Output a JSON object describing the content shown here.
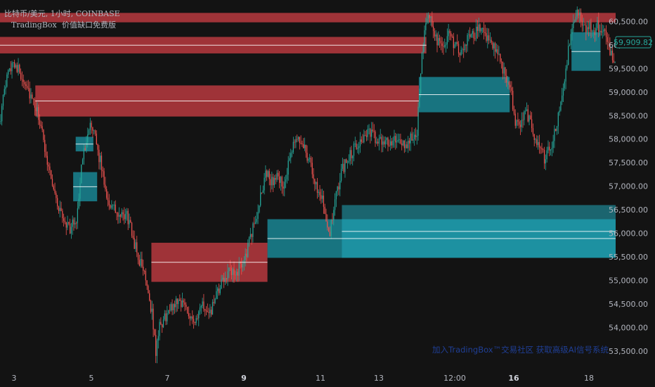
{
  "header": {
    "symbol_line": "比特币/美元, 1小时, COINBASE",
    "indicator_name": "TradingBox",
    "indicator_title": "价值缺口免费版"
  },
  "watermark": "加入TradingBox™交易社区 获取高级AI信号系统",
  "current_price": "59,909.82",
  "colors": {
    "background": "#131313",
    "bull_candle": "#26a69a",
    "bear_candle": "#ef5350",
    "bear_zone": "#b83a3f",
    "bull_zone": "#1a8a99",
    "bull_zone_light": "#22aabb",
    "mid_line": "#ffffff",
    "axis_text": "#b2b5be"
  },
  "chart_data": {
    "type": "candlestick",
    "title": "比特币/美元, 1小时, COINBASE",
    "y_axis": {
      "position": "right",
      "ticks": [
        "53,500.00",
        "54,000.00",
        "54,500.00",
        "55,000.00",
        "55,500.00",
        "56,000.00",
        "56,500.00",
        "57,000.00",
        "57,500.00",
        "58,000.00",
        "58,500.00",
        "59,000.00",
        "59,500.00",
        "60,000.00",
        "60,500.00"
      ],
      "range": [
        53350,
        60700
      ]
    },
    "x_axis": {
      "ticks": [
        {
          "label": "3",
          "bold": false
        },
        {
          "label": "5",
          "bold": false
        },
        {
          "label": "7",
          "bold": false
        },
        {
          "label": "9",
          "bold": true
        },
        {
          "label": "11",
          "bold": false
        },
        {
          "label": "13",
          "bold": false
        },
        {
          "label": "12:00",
          "bold": false
        },
        {
          "label": "16",
          "bold": true
        },
        {
          "label": "18",
          "bold": false
        }
      ]
    },
    "close_path": [
      [
        0,
        58500
      ],
      [
        5,
        59300
      ],
      [
        10,
        59700
      ],
      [
        15,
        59400
      ],
      [
        20,
        59200
      ],
      [
        25,
        58800
      ],
      [
        30,
        58500
      ],
      [
        35,
        57800
      ],
      [
        40,
        57200
      ],
      [
        45,
        56600
      ],
      [
        50,
        56300
      ],
      [
        55,
        56100
      ],
      [
        60,
        56300
      ],
      [
        65,
        57600
      ],
      [
        70,
        58300
      ],
      [
        75,
        58000
      ],
      [
        80,
        57400
      ],
      [
        85,
        56700
      ],
      [
        90,
        56500
      ],
      [
        95,
        56300
      ],
      [
        100,
        56400
      ],
      [
        105,
        55900
      ],
      [
        110,
        55400
      ],
      [
        115,
        55100
      ],
      [
        120,
        54300
      ],
      [
        123,
        53500
      ],
      [
        126,
        54000
      ],
      [
        130,
        54200
      ],
      [
        135,
        54400
      ],
      [
        140,
        54600
      ],
      [
        145,
        54500
      ],
      [
        150,
        54300
      ],
      [
        155,
        54100
      ],
      [
        160,
        54500
      ],
      [
        165,
        54200
      ],
      [
        170,
        54600
      ],
      [
        175,
        54900
      ],
      [
        180,
        55200
      ],
      [
        185,
        55100
      ],
      [
        190,
        55300
      ],
      [
        195,
        55600
      ],
      [
        200,
        56100
      ],
      [
        205,
        56600
      ],
      [
        210,
        57300
      ],
      [
        215,
        57100
      ],
      [
        220,
        57200
      ],
      [
        225,
        57000
      ],
      [
        230,
        57700
      ],
      [
        235,
        58000
      ],
      [
        240,
        57900
      ],
      [
        245,
        57500
      ],
      [
        250,
        57000
      ],
      [
        255,
        56800
      ],
      [
        258,
        56300
      ],
      [
        261,
        56000
      ],
      [
        264,
        56500
      ],
      [
        270,
        57300
      ],
      [
        275,
        57600
      ],
      [
        280,
        57800
      ],
      [
        285,
        58000
      ],
      [
        290,
        58100
      ],
      [
        295,
        58100
      ],
      [
        300,
        57900
      ],
      [
        305,
        58000
      ],
      [
        310,
        57900
      ],
      [
        315,
        58000
      ],
      [
        320,
        57800
      ],
      [
        325,
        58000
      ],
      [
        330,
        58200
      ],
      [
        332,
        59100
      ],
      [
        334,
        59900
      ],
      [
        337,
        60350
      ],
      [
        340,
        60600
      ],
      [
        343,
        60400
      ],
      [
        346,
        60100
      ],
      [
        350,
        59900
      ],
      [
        355,
        60200
      ],
      [
        360,
        60000
      ],
      [
        365,
        59800
      ],
      [
        370,
        60100
      ],
      [
        375,
        60200
      ],
      [
        380,
        60400
      ],
      [
        385,
        60200
      ],
      [
        390,
        60000
      ],
      [
        395,
        59700
      ],
      [
        400,
        59400
      ],
      [
        405,
        58900
      ],
      [
        408,
        58400
      ],
      [
        412,
        58300
      ],
      [
        416,
        58600
      ],
      [
        420,
        58400
      ],
      [
        424,
        58000
      ],
      [
        428,
        57800
      ],
      [
        431,
        57600
      ],
      [
        434,
        57800
      ],
      [
        437,
        57900
      ],
      [
        440,
        58200
      ],
      [
        443,
        58600
      ],
      [
        446,
        59100
      ],
      [
        449,
        59700
      ],
      [
        452,
        60200
      ],
      [
        455,
        60500
      ],
      [
        458,
        60700
      ],
      [
        461,
        60500
      ],
      [
        464,
        60300
      ],
      [
        467,
        60400
      ],
      [
        470,
        60200
      ],
      [
        473,
        60400
      ],
      [
        476,
        60300
      ],
      [
        479,
        60200
      ],
      [
        482,
        60000
      ],
      [
        485,
        59700
      ],
      [
        488,
        59600
      ]
    ],
    "zones": [
      {
        "kind": "bearish",
        "top": 60680,
        "bottom": 60480,
        "x_start": 0,
        "x_end": 488,
        "midline": false
      },
      {
        "kind": "bearish",
        "top": 60170,
        "bottom": 59820,
        "x_start": 0,
        "x_end": 338,
        "midline": true
      },
      {
        "kind": "bearish",
        "top": 59140,
        "bottom": 58480,
        "x_start": 28,
        "x_end": 332,
        "midline": true
      },
      {
        "kind": "bullish",
        "top": 59320,
        "bottom": 58570,
        "x_start": 332,
        "x_end": 404,
        "midline": true
      },
      {
        "kind": "bullish",
        "top": 58050,
        "bottom": 57740,
        "x_start": 60,
        "x_end": 74,
        "midline": true
      },
      {
        "kind": "bullish",
        "top": 57300,
        "bottom": 56680,
        "x_start": 58,
        "x_end": 77,
        "midline": true
      },
      {
        "kind": "bearish",
        "top": 55800,
        "bottom": 54970,
        "x_start": 120,
        "x_end": 212,
        "midline": true
      },
      {
        "kind": "bullish",
        "top": 56300,
        "bottom": 55480,
        "x_start": 212,
        "x_end": 488,
        "midline": true
      },
      {
        "kind": "bullish_light",
        "top": 56600,
        "bottom": 55480,
        "x_start": 271,
        "x_end": 488,
        "midline": true
      },
      {
        "kind": "bullish",
        "top": 60270,
        "bottom": 59450,
        "x_start": 453,
        "x_end": 476,
        "midline": true
      }
    ]
  }
}
